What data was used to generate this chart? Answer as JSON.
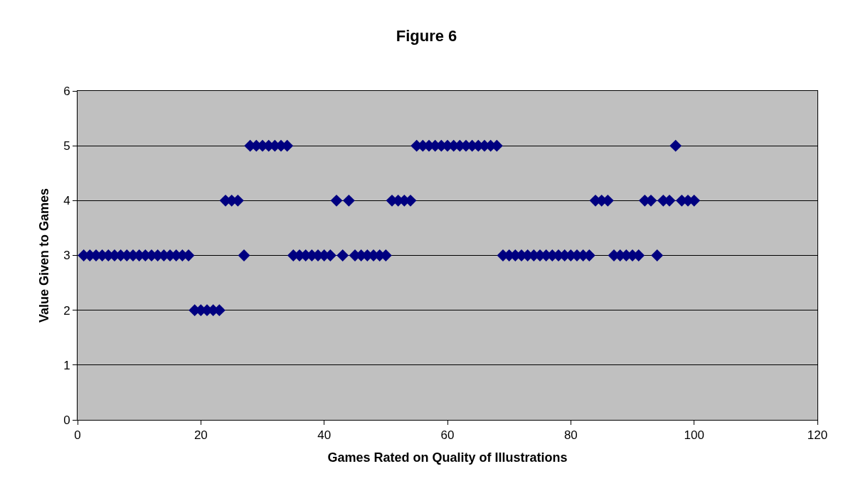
{
  "chart_data": {
    "type": "scatter",
    "title": "Figure 6",
    "xlabel": "Games Rated on Quality of Illustrations",
    "ylabel": "Value Given to Games",
    "xlim": [
      0,
      120
    ],
    "xticks": [
      0,
      20,
      40,
      60,
      80,
      100,
      120
    ],
    "ylim": [
      0,
      6
    ],
    "yticks": [
      0,
      1,
      2,
      3,
      4,
      5,
      6
    ],
    "grid": "y",
    "marker": "diamond",
    "series": [
      {
        "color": "#000080",
        "x": [
          1,
          2,
          3,
          4,
          5,
          6,
          7,
          8,
          9,
          10,
          11,
          12,
          13,
          14,
          15,
          16,
          17,
          18,
          19,
          20,
          21,
          22,
          23,
          24,
          25,
          26,
          27,
          28,
          29,
          30,
          31,
          32,
          33,
          34,
          35,
          36,
          37,
          38,
          39,
          40,
          41,
          42,
          43,
          44,
          45,
          46,
          47,
          48,
          49,
          50,
          51,
          52,
          53,
          54,
          55,
          56,
          57,
          58,
          59,
          60,
          61,
          62,
          63,
          64,
          65,
          66,
          67,
          68,
          69,
          70,
          71,
          72,
          73,
          74,
          75,
          76,
          77,
          78,
          79,
          80,
          81,
          82,
          83,
          84,
          85,
          86,
          87,
          88,
          89,
          90,
          91,
          92,
          93,
          94,
          95,
          96,
          97,
          98,
          99,
          100
        ],
        "values": [
          3,
          3,
          3,
          3,
          3,
          3,
          3,
          3,
          3,
          3,
          3,
          3,
          3,
          3,
          3,
          3,
          3,
          3,
          2,
          2,
          2,
          2,
          2,
          4,
          4,
          4,
          3,
          5,
          5,
          5,
          5,
          5,
          5,
          5,
          3,
          3,
          3,
          3,
          3,
          3,
          3,
          4,
          3,
          4,
          3,
          3,
          3,
          3,
          3,
          3,
          4,
          4,
          4,
          4,
          5,
          5,
          5,
          5,
          5,
          5,
          5,
          5,
          5,
          5,
          5,
          5,
          5,
          5,
          3,
          3,
          3,
          3,
          3,
          3,
          3,
          3,
          3,
          3,
          3,
          3,
          3,
          3,
          3,
          4,
          4,
          4,
          3,
          3,
          3,
          3,
          3,
          4,
          4,
          3,
          4,
          4,
          5,
          4,
          4,
          4
        ]
      }
    ]
  }
}
